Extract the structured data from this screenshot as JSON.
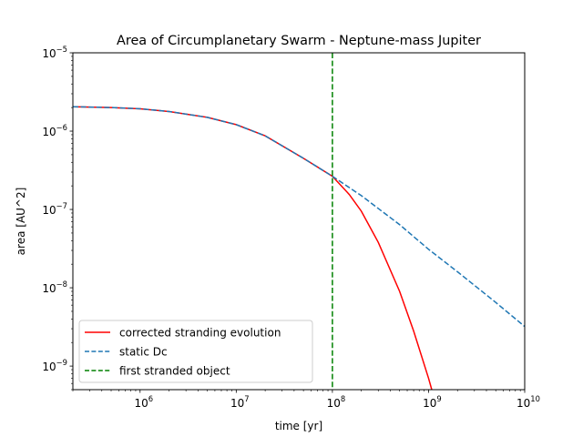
{
  "chart_data": {
    "type": "line",
    "title": "Area of Circumplanetary Swarm - Neptune-mass Jupiter",
    "xlabel": "time [yr]",
    "ylabel": "area [AU^2]",
    "xscale": "log",
    "yscale": "log",
    "xlim": [
      200000,
      10000000000
    ],
    "ylim": [
      5e-10,
      1e-05
    ],
    "x_ticks": [
      {
        "value": 1000000,
        "base": "10",
        "exp": "6"
      },
      {
        "value": 10000000,
        "base": "10",
        "exp": "7"
      },
      {
        "value": 100000000,
        "base": "10",
        "exp": "8"
      },
      {
        "value": 1000000000,
        "base": "10",
        "exp": "9"
      },
      {
        "value": 10000000000,
        "base": "10",
        "exp": "10"
      }
    ],
    "y_ticks": [
      {
        "value": 1e-09,
        "base": "10",
        "exp": "−9"
      },
      {
        "value": 1e-08,
        "base": "10",
        "exp": "−8"
      },
      {
        "value": 1e-07,
        "base": "10",
        "exp": "−7"
      },
      {
        "value": 1e-06,
        "base": "10",
        "exp": "−6"
      },
      {
        "value": 1e-05,
        "base": "10",
        "exp": "−5"
      }
    ],
    "grid": false,
    "legend_position": "lower-left",
    "series": [
      {
        "name": "corrected stranding evolution",
        "color": "#ff0000",
        "style": "solid",
        "x": [
          200000,
          500000,
          1000000,
          2000000,
          5000000,
          10000000,
          20000000,
          50000000,
          100000000,
          150000000,
          200000000,
          300000000,
          500000000,
          700000000,
          1000000000,
          1080000000
        ],
        "y": [
          2.05e-06,
          2e-06,
          1.93e-06,
          1.78e-06,
          1.5e-06,
          1.21e-06,
          8.7e-07,
          4.5e-07,
          2.65e-07,
          1.55e-07,
          9.5e-08,
          3.8e-08,
          9e-09,
          2.8e-09,
          7e-10,
          5e-10
        ]
      },
      {
        "name": "static Dc",
        "color": "#1f77b4",
        "style": "dashed",
        "x": [
          200000,
          500000,
          1000000,
          2000000,
          5000000,
          10000000,
          20000000,
          50000000,
          100000000,
          200000000,
          500000000,
          1000000000,
          2000000000,
          5000000000,
          10000000000
        ],
        "y": [
          2.05e-06,
          2e-06,
          1.93e-06,
          1.78e-06,
          1.5e-06,
          1.21e-06,
          8.7e-07,
          4.5e-07,
          2.65e-07,
          1.5e-07,
          6.4e-08,
          3.1e-08,
          1.6e-08,
          6.5e-09,
          3.2e-09
        ]
      },
      {
        "name": "first stranded object",
        "color": "#008000",
        "style": "dashed",
        "vline_x": 100000000
      }
    ]
  }
}
